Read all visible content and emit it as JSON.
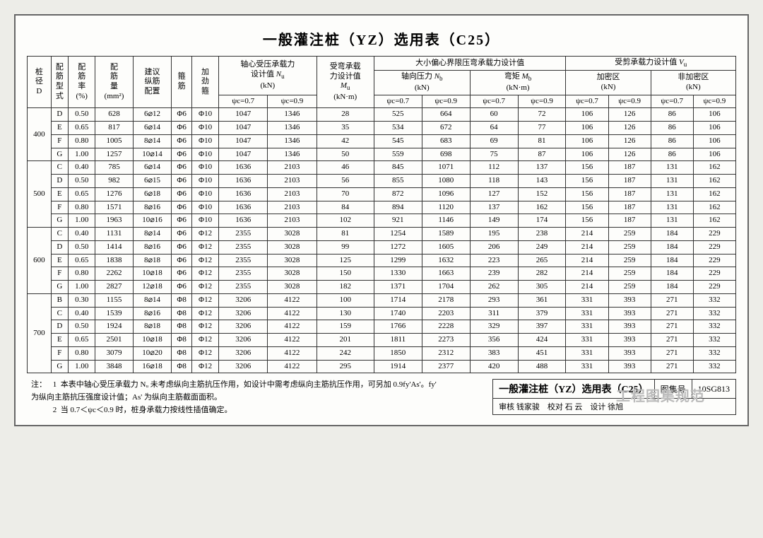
{
  "title": "一般灌注桩（YZ）选用表（C25）",
  "headers": {
    "row1": {
      "c0": "桩\n径\nD",
      "c1": "配\n筋\n型\n式",
      "c2": "配\n筋\n率\n(%)",
      "c3": "配\n筋\n量\n(mm²)",
      "c4": "建议\n纵筋\n配置",
      "c5": "箍\n筋",
      "c6": "加\n劲\n箍",
      "g1": "轴心受压承载力\n设计值 Nᵤ\n(kN)",
      "g2": "受弯承载\n力设计值\nMᵤ\n(kN·m)",
      "g3": "大小偏心界限压弯承载力设计值",
      "g4": "受剪承载力设计值 Vᵤ",
      "g3a": "轴向压力 Nᵦ\n(kN)",
      "g3b": "弯矩 Mᵦ\n(kN·m)",
      "g4a": "加密区\n(kN)",
      "g4b": "非加密区\n(kN)",
      "psi07": "ψc=0.7",
      "psi09": "ψc=0.9"
    }
  },
  "groups": [
    {
      "diam": "400",
      "rows": [
        [
          "D",
          "0.50",
          "628",
          "6⌀12",
          "Φ6",
          "Φ10",
          "1047",
          "1346",
          "28",
          "525",
          "664",
          "60",
          "72",
          "106",
          "126",
          "86",
          "106"
        ],
        [
          "E",
          "0.65",
          "817",
          "6⌀14",
          "Φ6",
          "Φ10",
          "1047",
          "1346",
          "35",
          "534",
          "672",
          "64",
          "77",
          "106",
          "126",
          "86",
          "106"
        ],
        [
          "F",
          "0.80",
          "1005",
          "8⌀14",
          "Φ6",
          "Φ10",
          "1047",
          "1346",
          "42",
          "545",
          "683",
          "69",
          "81",
          "106",
          "126",
          "86",
          "106"
        ],
        [
          "G",
          "1.00",
          "1257",
          "10⌀14",
          "Φ6",
          "Φ10",
          "1047",
          "1346",
          "50",
          "559",
          "698",
          "75",
          "87",
          "106",
          "126",
          "86",
          "106"
        ]
      ]
    },
    {
      "diam": "500",
      "rows": [
        [
          "C",
          "0.40",
          "785",
          "6⌀14",
          "Φ6",
          "Φ10",
          "1636",
          "2103",
          "46",
          "845",
          "1071",
          "112",
          "137",
          "156",
          "187",
          "131",
          "162"
        ],
        [
          "D",
          "0.50",
          "982",
          "6⌀15",
          "Φ6",
          "Φ10",
          "1636",
          "2103",
          "56",
          "855",
          "1080",
          "118",
          "143",
          "156",
          "187",
          "131",
          "162"
        ],
        [
          "E",
          "0.65",
          "1276",
          "6⌀18",
          "Φ6",
          "Φ10",
          "1636",
          "2103",
          "70",
          "872",
          "1096",
          "127",
          "152",
          "156",
          "187",
          "131",
          "162"
        ],
        [
          "F",
          "0.80",
          "1571",
          "8⌀16",
          "Φ6",
          "Φ10",
          "1636",
          "2103",
          "84",
          "894",
          "1120",
          "137",
          "162",
          "156",
          "187",
          "131",
          "162"
        ],
        [
          "G",
          "1.00",
          "1963",
          "10⌀16",
          "Φ6",
          "Φ10",
          "1636",
          "2103",
          "102",
          "921",
          "1146",
          "149",
          "174",
          "156",
          "187",
          "131",
          "162"
        ]
      ]
    },
    {
      "diam": "600",
      "rows": [
        [
          "C",
          "0.40",
          "1131",
          "8⌀14",
          "Φ6",
          "Φ12",
          "2355",
          "3028",
          "81",
          "1254",
          "1589",
          "195",
          "238",
          "214",
          "259",
          "184",
          "229"
        ],
        [
          "D",
          "0.50",
          "1414",
          "8⌀16",
          "Φ6",
          "Φ12",
          "2355",
          "3028",
          "99",
          "1272",
          "1605",
          "206",
          "249",
          "214",
          "259",
          "184",
          "229"
        ],
        [
          "E",
          "0.65",
          "1838",
          "8⌀18",
          "Φ6",
          "Φ12",
          "2355",
          "3028",
          "125",
          "1299",
          "1632",
          "223",
          "265",
          "214",
          "259",
          "184",
          "229"
        ],
        [
          "F",
          "0.80",
          "2262",
          "10⌀18",
          "Φ6",
          "Φ12",
          "2355",
          "3028",
          "150",
          "1330",
          "1663",
          "239",
          "282",
          "214",
          "259",
          "184",
          "229"
        ],
        [
          "G",
          "1.00",
          "2827",
          "12⌀18",
          "Φ6",
          "Φ12",
          "2355",
          "3028",
          "182",
          "1371",
          "1704",
          "262",
          "305",
          "214",
          "259",
          "184",
          "229"
        ]
      ]
    },
    {
      "diam": "700",
      "rows": [
        [
          "B",
          "0.30",
          "1155",
          "8⌀14",
          "Φ8",
          "Φ12",
          "3206",
          "4122",
          "100",
          "1714",
          "2178",
          "293",
          "361",
          "331",
          "393",
          "271",
          "332"
        ],
        [
          "C",
          "0.40",
          "1539",
          "8⌀16",
          "Φ8",
          "Φ12",
          "3206",
          "4122",
          "130",
          "1740",
          "2203",
          "311",
          "379",
          "331",
          "393",
          "271",
          "332"
        ],
        [
          "D",
          "0.50",
          "1924",
          "8⌀18",
          "Φ8",
          "Φ12",
          "3206",
          "4122",
          "159",
          "1766",
          "2228",
          "329",
          "397",
          "331",
          "393",
          "271",
          "332"
        ],
        [
          "E",
          "0.65",
          "2501",
          "10⌀18",
          "Φ8",
          "Φ12",
          "3206",
          "4122",
          "201",
          "1811",
          "2273",
          "356",
          "424",
          "331",
          "393",
          "271",
          "332"
        ],
        [
          "F",
          "0.80",
          "3079",
          "10⌀20",
          "Φ8",
          "Φ12",
          "3206",
          "4122",
          "242",
          "1850",
          "2312",
          "383",
          "451",
          "331",
          "393",
          "271",
          "332"
        ],
        [
          "G",
          "1.00",
          "3848",
          "16⌀18",
          "Φ8",
          "Φ12",
          "3206",
          "4122",
          "295",
          "1914",
          "2377",
          "420",
          "488",
          "331",
          "393",
          "271",
          "332"
        ]
      ]
    }
  ],
  "notes": {
    "label": "注：",
    "items": [
      "本表中轴心受压承载力 Nᵤ 未考虑纵向主筋抗压作用，如设计中需考虑纵向主筋抗压作用，可另加 0.9fy'As'。fy' 为纵向主筋抗压强度设计值；As' 为纵向主筋截面面积。",
      "当 0.7＜ψc＜0.9 时，桩身承载力按线性插值确定。"
    ]
  },
  "footer": {
    "title": "一般灌注桩（YZ）选用表（C25）",
    "atlas_label": "图集号",
    "atlas_no": "10SG813",
    "row2": "审核 钱家骏　校对 石 云　设计 徐旭"
  },
  "watermark": "工程图集规范",
  "colors": {
    "page_bg": "#fdfdfb",
    "body_bg": "#edede8",
    "border": "#333333",
    "text": "#222222"
  }
}
